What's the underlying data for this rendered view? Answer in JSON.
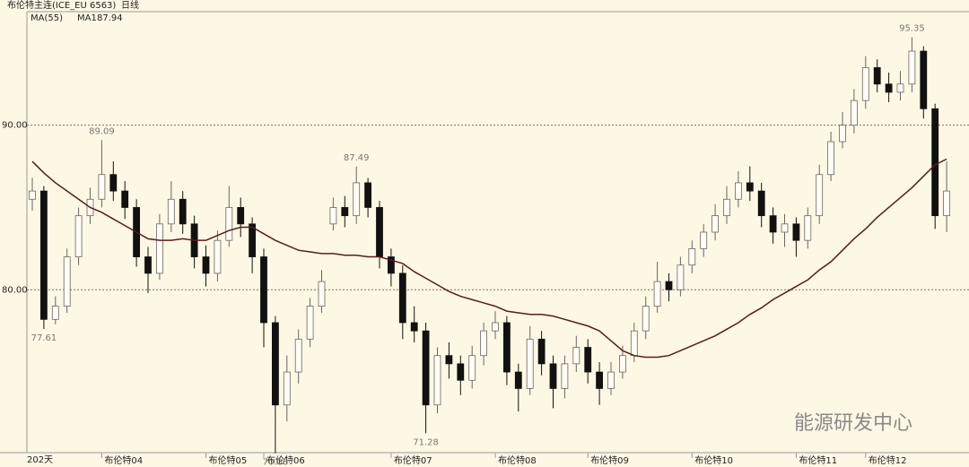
{
  "header": {
    "title": "布伦特主连(ICE_EU 6563)",
    "period": "日线",
    "indicator": "MA(55)"
  },
  "chart_data": {
    "type": "candlestick",
    "categories": [
      null,
      null,
      null,
      null,
      null,
      null,
      "布伦特04",
      null,
      null,
      null,
      null,
      null,
      null,
      null,
      null,
      "布伦特05",
      null,
      null,
      null,
      null,
      "布伦特06",
      null,
      null,
      null,
      null,
      null,
      null,
      null,
      null,
      null,
      null,
      "布伦特07",
      null,
      null,
      null,
      null,
      null,
      null,
      null,
      null,
      "布伦特08",
      null,
      null,
      null,
      null,
      null,
      null,
      null,
      "布伦特09",
      null,
      null,
      null,
      null,
      null,
      null,
      null,
      null,
      "布伦特10",
      null,
      null,
      null,
      null,
      null,
      null,
      null,
      null,
      "布伦特11",
      null,
      null,
      null,
      null,
      null,
      "布伦特12",
      null,
      null,
      null,
      null,
      null,
      null,
      null
    ],
    "open": [
      85.5,
      86,
      78.2,
      79,
      82,
      84.5,
      85.5,
      87,
      86,
      85,
      82,
      81,
      84,
      85.5,
      84,
      82,
      81,
      83,
      85,
      84,
      82,
      78,
      73,
      75,
      77,
      79,
      84,
      85,
      84.5,
      86.5,
      85,
      82,
      81,
      78,
      77.5,
      73,
      76,
      75.5,
      74.5,
      76,
      77.5,
      78,
      75,
      74,
      77,
      75.5,
      74,
      75.5,
      76.5,
      75,
      74,
      75,
      76,
      77.5,
      79,
      80.5,
      80,
      81.5,
      82.5,
      83.5,
      84.5,
      85.5,
      86.5,
      86,
      84.5,
      83.5,
      84,
      83,
      84.5,
      87,
      89,
      90,
      91.5,
      93.5,
      92.5,
      92,
      92.5,
      94.5,
      91,
      84.5
    ],
    "high": [
      86.8,
      86.3,
      79.6,
      82.5,
      85,
      86.2,
      89.09,
      87.8,
      86.6,
      85.5,
      82.6,
      84.6,
      86.6,
      86,
      84.5,
      82.7,
      83.6,
      86.3,
      85.6,
      84.4,
      82.5,
      78.4,
      76,
      77.6,
      79.5,
      81.2,
      85.6,
      85.7,
      87.49,
      86.8,
      85.4,
      82.5,
      81.5,
      79,
      78,
      76.5,
      76.8,
      76,
      76.6,
      78,
      78.7,
      78.4,
      75.5,
      77.8,
      77.5,
      76,
      76,
      77.2,
      77,
      75.6,
      75.6,
      76.6,
      78,
      79.6,
      81.7,
      81,
      82,
      83,
      84,
      85.2,
      86.3,
      87.2,
      87.5,
      86.5,
      85,
      84.6,
      84.4,
      85,
      87.6,
      89.6,
      90.8,
      92.2,
      94.2,
      94,
      93.2,
      93.3,
      95.35,
      94.8,
      91.3,
      87.8
    ],
    "low": [
      84.8,
      77.61,
      77.9,
      78.6,
      81.5,
      84,
      85,
      85.4,
      84.3,
      81.4,
      79.8,
      80.6,
      83.5,
      83.4,
      81.3,
      80.2,
      80.5,
      82.6,
      83.2,
      81,
      76.5,
      70.06,
      72,
      74.3,
      76.5,
      78.6,
      83.6,
      83.8,
      84,
      84.4,
      81.3,
      80.2,
      77,
      76.8,
      71.28,
      72.5,
      74.6,
      73.6,
      74,
      75.4,
      77,
      74.2,
      72.6,
      73.6,
      74.8,
      72.8,
      73.4,
      75,
      74.3,
      73,
      73.6,
      74.6,
      75.6,
      77,
      78.6,
      79.3,
      79.6,
      81,
      82,
      83,
      84,
      85,
      85.4,
      83.8,
      82.8,
      82.6,
      82,
      82.5,
      84,
      86.6,
      88.6,
      89.5,
      91,
      92,
      91.4,
      91.5,
      92,
      90.4,
      83.7,
      83.5
    ],
    "close": [
      86,
      78.2,
      79,
      82,
      84.5,
      85.5,
      87,
      86,
      85,
      82,
      81,
      84,
      85.5,
      84,
      82,
      81,
      83,
      85,
      84,
      82,
      78,
      73,
      75,
      77,
      79,
      80.5,
      85,
      84.5,
      86.5,
      85,
      82,
      81,
      78,
      77.5,
      73,
      76,
      75.5,
      74.5,
      76,
      77.5,
      78,
      75,
      74,
      77,
      75.5,
      74,
      75.5,
      76.5,
      75,
      74,
      75,
      76,
      77.5,
      79,
      80.5,
      80,
      81.5,
      82.5,
      83.5,
      84.5,
      85.5,
      86.5,
      86,
      84.5,
      83.5,
      84,
      83,
      84.5,
      87,
      89,
      90,
      91.5,
      93.5,
      92.5,
      92,
      92.5,
      94.5,
      91,
      84.5,
      86
    ],
    "up_color": "#fffdf5",
    "down_color": "#111111",
    "ma": {
      "name": "MA1",
      "color": "#5c1a1a",
      "values": [
        87.8,
        87.1,
        86.5,
        86.0,
        85.5,
        85.0,
        84.7,
        84.3,
        83.9,
        83.5,
        83.1,
        83.0,
        83.0,
        83.1,
        83.0,
        83.0,
        83.3,
        83.6,
        83.8,
        83.8,
        83.4,
        83.0,
        82.7,
        82.4,
        82.3,
        82.2,
        82.2,
        82.1,
        82.1,
        82.0,
        82.0,
        81.8,
        81.6,
        81.1,
        80.7,
        80.3,
        79.9,
        79.6,
        79.4,
        79.2,
        79.0,
        78.7,
        78.6,
        78.5,
        78.5,
        78.4,
        78.2,
        78.0,
        77.8,
        77.5,
        76.9,
        76.3,
        76.0,
        75.9,
        75.9,
        76.0,
        76.3,
        76.6,
        76.9,
        77.2,
        77.6,
        78.0,
        78.5,
        78.9,
        79.4,
        79.8,
        80.2,
        80.6,
        81.2,
        81.7,
        82.4,
        83.1,
        83.7,
        84.4,
        85.0,
        85.6,
        86.2,
        86.9,
        87.6,
        87.94
      ]
    },
    "ylim": [
      70.1,
      96.9
    ],
    "yticks": [
      {
        "value": 80,
        "label": "80.00"
      },
      {
        "value": 90,
        "label": "90.00"
      }
    ],
    "grid": true
  },
  "footer": {
    "count": "202天"
  },
  "watermark": "能源研发中心"
}
